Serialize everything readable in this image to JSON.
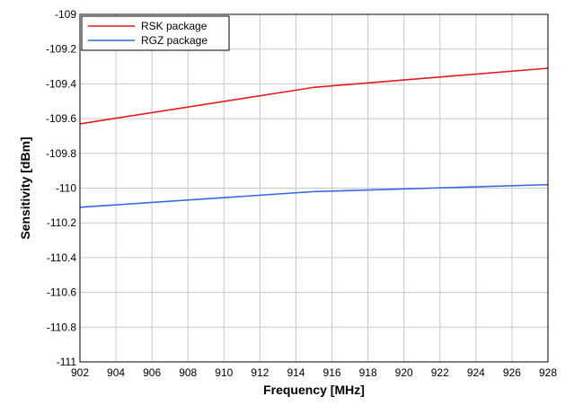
{
  "chart_data": {
    "type": "line",
    "title": "",
    "xlabel": "Frequency [MHz]",
    "ylabel": "Sensitivity [dBm]",
    "xlim": [
      902,
      928
    ],
    "ylim": [
      -111,
      -109
    ],
    "x_ticks": [
      "902",
      "904",
      "906",
      "908",
      "910",
      "912",
      "914",
      "916",
      "918",
      "920",
      "922",
      "924",
      "926",
      "928"
    ],
    "y_ticks": [
      "-109",
      "-109.2",
      "-109.4",
      "-109.6",
      "-109.8",
      "-110",
      "-110.2",
      "-110.4",
      "-110.6",
      "-110.8",
      "-111"
    ],
    "grid": true,
    "legend_position": "top-left",
    "series": [
      {
        "name": "RSK package",
        "color": "#e31a1c",
        "x": [
          902,
          915,
          928
        ],
        "y": [
          -109.63,
          -109.42,
          -109.31
        ]
      },
      {
        "name": "RGZ package",
        "color": "#3366e0",
        "x": [
          902,
          915,
          928
        ],
        "y": [
          -110.11,
          -110.02,
          -109.98
        ]
      }
    ]
  }
}
